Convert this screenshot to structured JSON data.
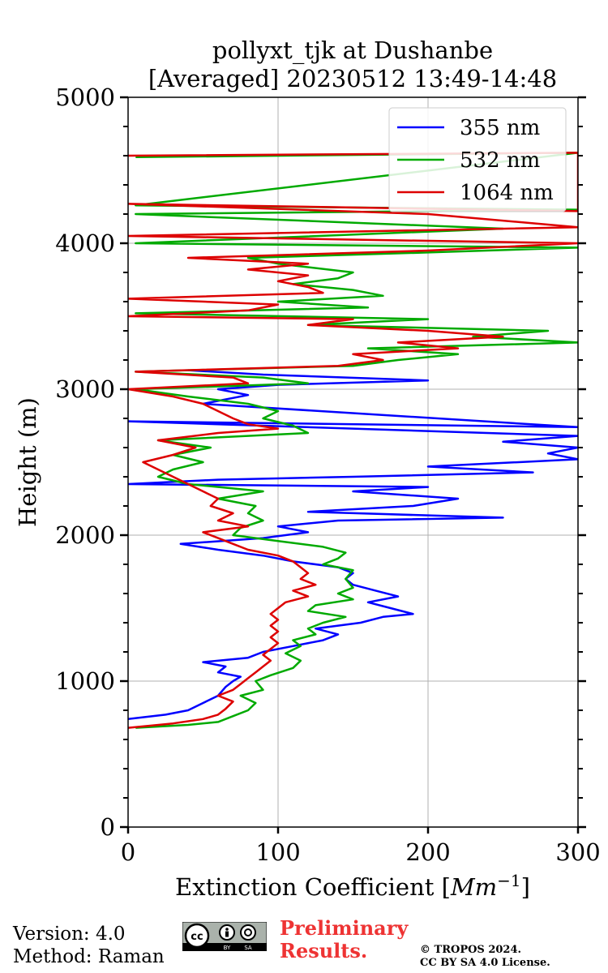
{
  "chart_data": {
    "type": "line",
    "title": "pollyxt_tjk at Dushanbe",
    "subtitle": "[Averaged] 20230512 13:49-14:48",
    "xlabel": "Extinction Coefficient [Mm⁻¹]",
    "ylabel": "Height (m)",
    "xlim": [
      0,
      300
    ],
    "ylim": [
      0,
      5000
    ],
    "xticks": [
      "0",
      "100",
      "200",
      "300"
    ],
    "yticks": [
      "0",
      "1000",
      "2000",
      "3000",
      "4000",
      "5000"
    ],
    "grid": true,
    "legend_position": "top-right",
    "series": [
      {
        "name": "355 nm",
        "color": "#0000ff",
        "points": [
          [
            0,
            740
          ],
          [
            25,
            770
          ],
          [
            40,
            800
          ],
          [
            50,
            850
          ],
          [
            60,
            900
          ],
          [
            65,
            960
          ],
          [
            70,
            1000
          ],
          [
            75,
            1030
          ],
          [
            60,
            1060
          ],
          [
            65,
            1100
          ],
          [
            50,
            1130
          ],
          [
            80,
            1160
          ],
          [
            90,
            1200
          ],
          [
            110,
            1240
          ],
          [
            130,
            1280
          ],
          [
            140,
            1320
          ],
          [
            125,
            1360
          ],
          [
            155,
            1400
          ],
          [
            170,
            1440
          ],
          [
            190,
            1460
          ],
          [
            175,
            1500
          ],
          [
            160,
            1540
          ],
          [
            180,
            1580
          ],
          [
            165,
            1620
          ],
          [
            150,
            1660
          ],
          [
            145,
            1700
          ],
          [
            150,
            1740
          ],
          [
            140,
            1780
          ],
          [
            110,
            1820
          ],
          [
            90,
            1860
          ],
          [
            60,
            1900
          ],
          [
            35,
            1940
          ],
          [
            90,
            1980
          ],
          [
            120,
            2020
          ],
          [
            100,
            2060
          ],
          [
            140,
            2100
          ],
          [
            250,
            2120
          ],
          [
            120,
            2160
          ],
          [
            190,
            2200
          ],
          [
            220,
            2250
          ],
          [
            150,
            2300
          ],
          [
            200,
            2330
          ],
          [
            0,
            2350
          ],
          [
            60,
            2380
          ],
          [
            150,
            2400
          ],
          [
            270,
            2430
          ],
          [
            200,
            2470
          ],
          [
            300,
            2520
          ],
          [
            280,
            2560
          ],
          [
            300,
            2600
          ],
          [
            250,
            2640
          ],
          [
            300,
            2680
          ],
          [
            0,
            2780
          ],
          [
            300,
            2740
          ],
          [
            50,
            2900
          ],
          [
            80,
            2960
          ],
          [
            60,
            3000
          ],
          [
            100,
            3030
          ],
          [
            200,
            3060
          ],
          [
            90,
            3100
          ],
          [
            40,
            3130
          ]
        ]
      },
      {
        "name": "532 nm",
        "color": "#00aa00",
        "points": [
          [
            5,
            680
          ],
          [
            40,
            700
          ],
          [
            60,
            720
          ],
          [
            70,
            760
          ],
          [
            80,
            800
          ],
          [
            85,
            850
          ],
          [
            75,
            900
          ],
          [
            90,
            940
          ],
          [
            85,
            1000
          ],
          [
            95,
            1040
          ],
          [
            110,
            1090
          ],
          [
            115,
            1140
          ],
          [
            105,
            1190
          ],
          [
            115,
            1240
          ],
          [
            110,
            1280
          ],
          [
            125,
            1320
          ],
          [
            120,
            1360
          ],
          [
            130,
            1400
          ],
          [
            145,
            1440
          ],
          [
            120,
            1480
          ],
          [
            125,
            1520
          ],
          [
            150,
            1560
          ],
          [
            140,
            1600
          ],
          [
            150,
            1640
          ],
          [
            145,
            1700
          ],
          [
            150,
            1760
          ],
          [
            130,
            1800
          ],
          [
            140,
            1840
          ],
          [
            145,
            1880
          ],
          [
            130,
            1920
          ],
          [
            100,
            1960
          ],
          [
            70,
            2000
          ],
          [
            75,
            2050
          ],
          [
            90,
            2100
          ],
          [
            80,
            2150
          ],
          [
            85,
            2200
          ],
          [
            60,
            2250
          ],
          [
            90,
            2300
          ],
          [
            40,
            2350
          ],
          [
            20,
            2400
          ],
          [
            30,
            2450
          ],
          [
            50,
            2500
          ],
          [
            30,
            2550
          ],
          [
            55,
            2600
          ],
          [
            20,
            2650
          ],
          [
            120,
            2700
          ],
          [
            110,
            2750
          ],
          [
            90,
            2800
          ],
          [
            100,
            2850
          ],
          [
            80,
            2900
          ],
          [
            40,
            2950
          ],
          [
            5,
            3000
          ],
          [
            120,
            3040
          ],
          [
            90,
            3080
          ],
          [
            5,
            3120
          ],
          [
            150,
            3160
          ],
          [
            180,
            3200
          ],
          [
            220,
            3240
          ],
          [
            160,
            3280
          ],
          [
            300,
            3320
          ],
          [
            230,
            3360
          ],
          [
            280,
            3400
          ],
          [
            120,
            3440
          ],
          [
            200,
            3480
          ],
          [
            5,
            3520
          ],
          [
            160,
            3560
          ],
          [
            100,
            3600
          ],
          [
            170,
            3640
          ],
          [
            150,
            3680
          ],
          [
            110,
            3720
          ],
          [
            140,
            3760
          ],
          [
            150,
            3800
          ],
          [
            100,
            3860
          ],
          [
            80,
            3900
          ],
          [
            210,
            3940
          ],
          [
            300,
            3970
          ],
          [
            5,
            4000
          ],
          [
            250,
            4100
          ],
          [
            5,
            4200
          ],
          [
            300,
            4230
          ],
          [
            5,
            4260
          ],
          [
            300,
            4620
          ],
          [
            5,
            4590
          ]
        ]
      },
      {
        "name": "1064 nm",
        "color": "#dd0000",
        "points": [
          [
            0,
            680
          ],
          [
            30,
            710
          ],
          [
            50,
            740
          ],
          [
            60,
            770
          ],
          [
            65,
            810
          ],
          [
            70,
            860
          ],
          [
            60,
            900
          ],
          [
            70,
            940
          ],
          [
            75,
            980
          ],
          [
            80,
            1020
          ],
          [
            85,
            1060
          ],
          [
            90,
            1100
          ],
          [
            95,
            1140
          ],
          [
            90,
            1180
          ],
          [
            95,
            1220
          ],
          [
            100,
            1260
          ],
          [
            95,
            1300
          ],
          [
            100,
            1340
          ],
          [
            95,
            1380
          ],
          [
            100,
            1420
          ],
          [
            95,
            1460
          ],
          [
            100,
            1500
          ],
          [
            105,
            1540
          ],
          [
            120,
            1580
          ],
          [
            110,
            1620
          ],
          [
            125,
            1660
          ],
          [
            115,
            1700
          ],
          [
            120,
            1740
          ],
          [
            115,
            1780
          ],
          [
            110,
            1820
          ],
          [
            100,
            1860
          ],
          [
            80,
            1900
          ],
          [
            70,
            1940
          ],
          [
            60,
            1980
          ],
          [
            50,
            2020
          ],
          [
            80,
            2060
          ],
          [
            60,
            2100
          ],
          [
            70,
            2150
          ],
          [
            55,
            2200
          ],
          [
            60,
            2250
          ],
          [
            50,
            2300
          ],
          [
            40,
            2350
          ],
          [
            30,
            2400
          ],
          [
            20,
            2450
          ],
          [
            10,
            2500
          ],
          [
            30,
            2550
          ],
          [
            45,
            2600
          ],
          [
            20,
            2650
          ],
          [
            60,
            2700
          ],
          [
            100,
            2730
          ],
          [
            80,
            2760
          ],
          [
            70,
            2800
          ],
          [
            60,
            2850
          ],
          [
            50,
            2900
          ],
          [
            30,
            2950
          ],
          [
            0,
            3000
          ],
          [
            80,
            3040
          ],
          [
            70,
            3080
          ],
          [
            5,
            3120
          ],
          [
            140,
            3160
          ],
          [
            170,
            3200
          ],
          [
            150,
            3240
          ],
          [
            220,
            3280
          ],
          [
            180,
            3320
          ],
          [
            250,
            3360
          ],
          [
            200,
            3400
          ],
          [
            120,
            3440
          ],
          [
            150,
            3480
          ],
          [
            0,
            3500
          ],
          [
            80,
            3540
          ],
          [
            100,
            3580
          ],
          [
            0,
            3620
          ],
          [
            130,
            3660
          ],
          [
            120,
            3700
          ],
          [
            100,
            3740
          ],
          [
            120,
            3780
          ],
          [
            80,
            3820
          ],
          [
            120,
            3860
          ],
          [
            40,
            3900
          ],
          [
            200,
            3950
          ],
          [
            300,
            4000
          ],
          [
            0,
            4050
          ],
          [
            300,
            4110
          ],
          [
            200,
            4200
          ],
          [
            0,
            4270
          ],
          [
            300,
            4220
          ],
          [
            300,
            4620
          ],
          [
            0,
            4600
          ]
        ]
      }
    ]
  },
  "footer": {
    "version": "Version: 4.0",
    "method": "Method: Raman",
    "preliminary_line1": "Preliminary",
    "preliminary_line2": "Results.",
    "copyright_line1": "© TROPOS 2024.",
    "copyright_line2": "CC BY SA 4.0 License.",
    "license_badge": [
      "cc",
      "BY",
      "SA"
    ]
  }
}
